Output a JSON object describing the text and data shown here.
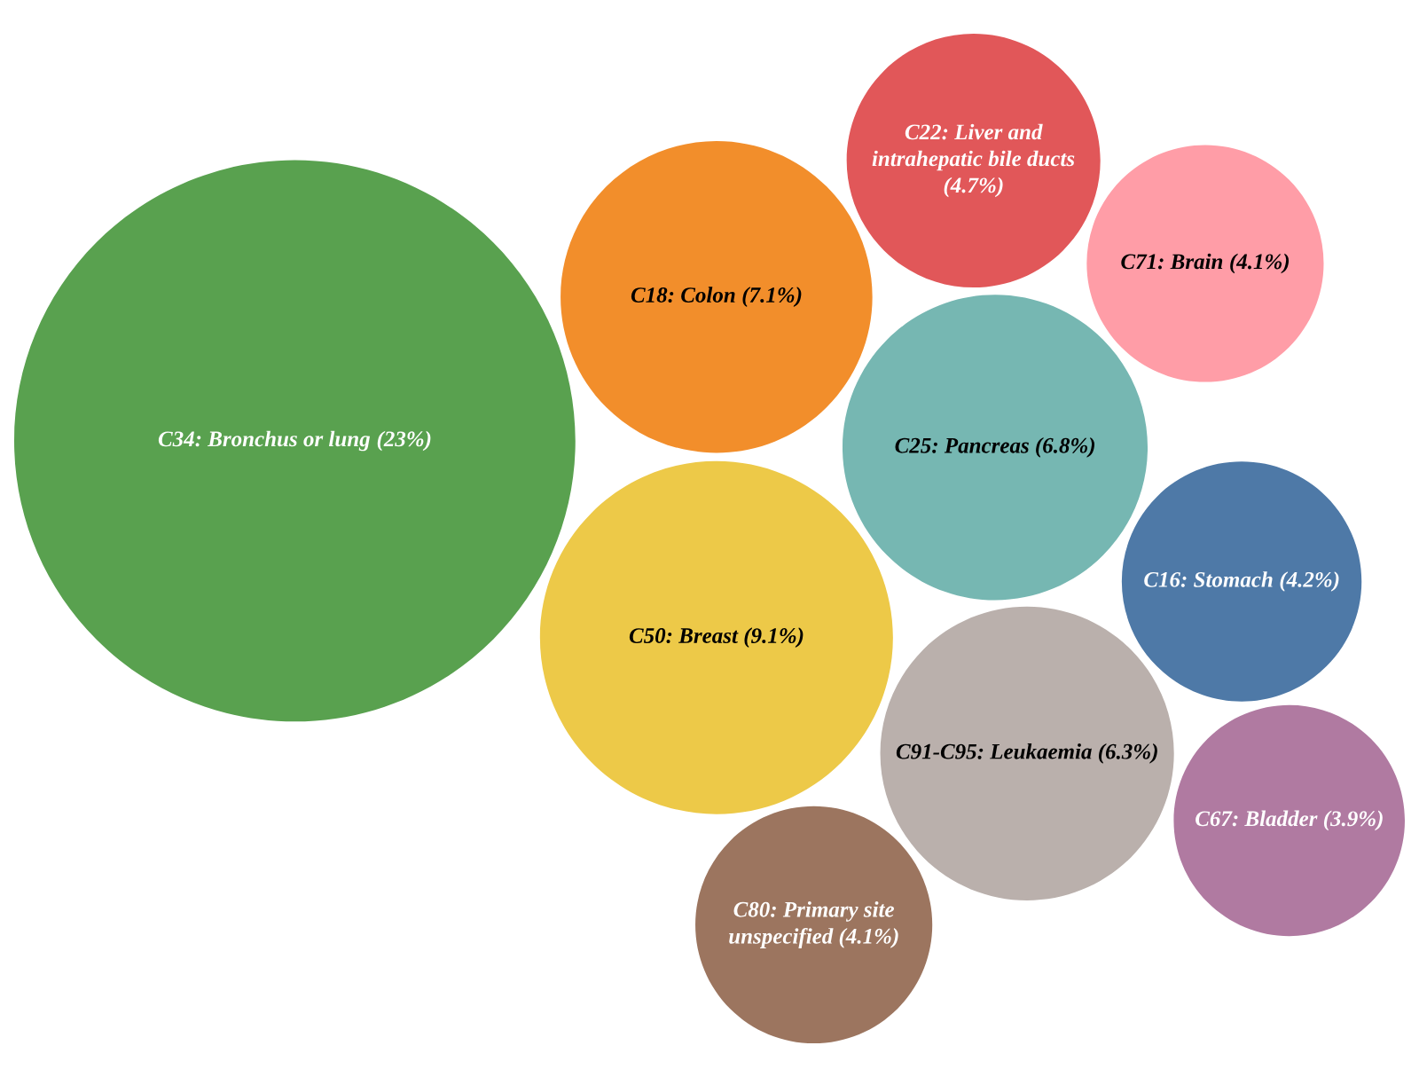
{
  "chart_data": {
    "type": "other",
    "categories": [
      "C34: Bronchus or lung",
      "C50: Breast",
      "C18: Colon",
      "C25: Pancreas",
      "C91-C95: Leukaemia",
      "C22: Liver and intrahepatic bile ducts",
      "C16: Stomach",
      "C71: Brain",
      "C80: Primary site unspecified",
      "C67: Bladder"
    ],
    "values": [
      23,
      9.1,
      7.1,
      6.8,
      6.3,
      4.7,
      4.2,
      4.1,
      4.1,
      3.9
    ],
    "value_labels": [
      "(23%)",
      "(9.1%)",
      "(7.1%)",
      "(6.8%)",
      "(6.3%)",
      "(4.7%)",
      "(4.2%)",
      "(4.1%)",
      "(4.1%)",
      "(3.9%)"
    ],
    "colors": [
      "#59a14f",
      "#edc948",
      "#f28e2b",
      "#76b7b2",
      "#bab0ac",
      "#e15759",
      "#4e79a7",
      "#ff9da7",
      "#9c755f",
      "#b07aa1"
    ]
  }
}
